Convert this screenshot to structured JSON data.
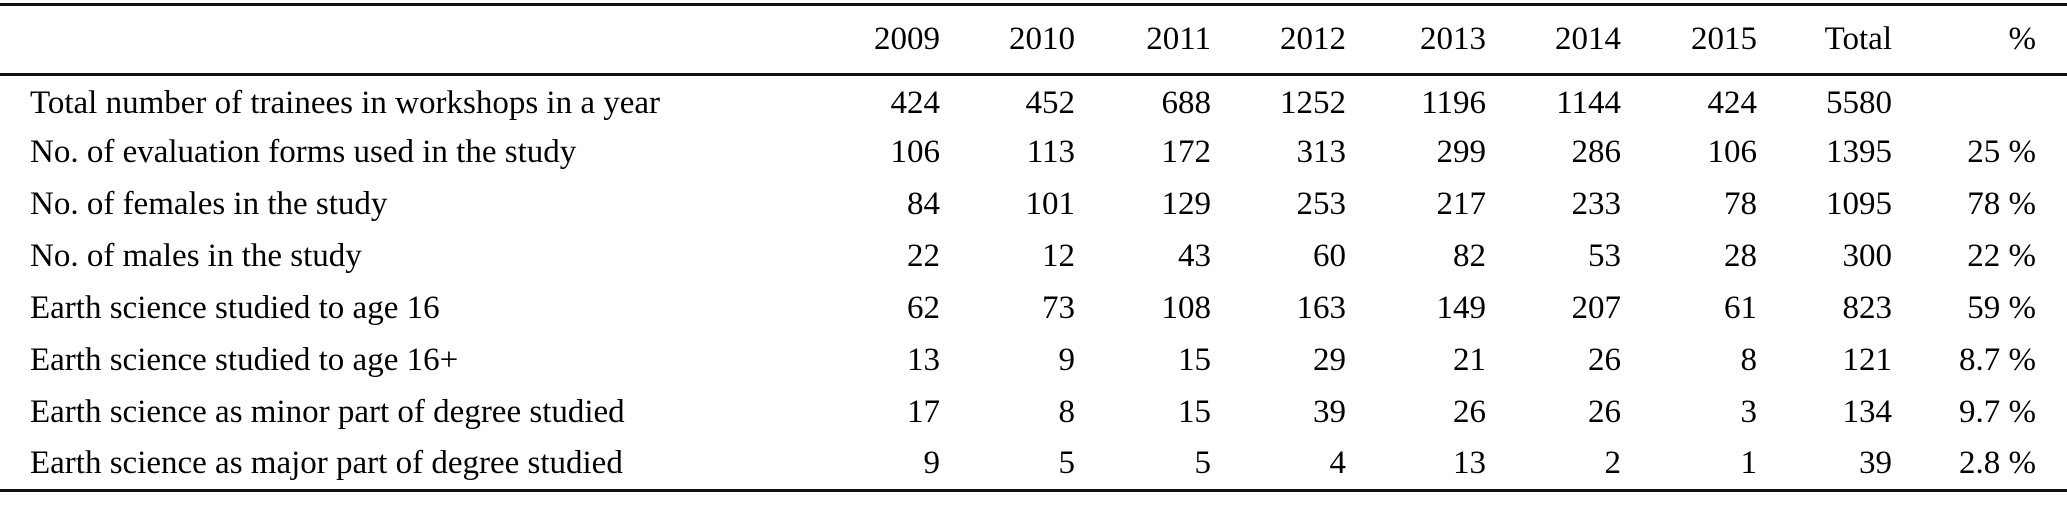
{
  "table": {
    "columns": [
      "",
      "2009",
      "2010",
      "2011",
      "2012",
      "2013",
      "2014",
      "2015",
      "Total",
      "%"
    ],
    "rows": [
      {
        "label": "Total number of trainees in workshops in a year",
        "values": [
          "424",
          "452",
          "688",
          "1252",
          "1196",
          "1144",
          "424",
          "5580",
          ""
        ]
      },
      {
        "label": "No. of evaluation forms used in the study",
        "values": [
          "106",
          "113",
          "172",
          "313",
          "299",
          "286",
          "106",
          "1395",
          "25 %"
        ]
      },
      {
        "label": "No. of females in the study",
        "values": [
          "84",
          "101",
          "129",
          "253",
          "217",
          "233",
          "78",
          "1095",
          "78 %"
        ]
      },
      {
        "label": "No. of males in the study",
        "values": [
          "22",
          "12",
          "43",
          "60",
          "82",
          "53",
          "28",
          "300",
          "22 %"
        ]
      },
      {
        "label": "Earth science studied to age 16",
        "values": [
          "62",
          "73",
          "108",
          "163",
          "149",
          "207",
          "61",
          "823",
          "59 %"
        ]
      },
      {
        "label": "Earth science studied to age 16+",
        "values": [
          "13",
          "9",
          "15",
          "29",
          "21",
          "26",
          "8",
          "121",
          "8.7 %"
        ]
      },
      {
        "label": "Earth science as minor part of degree studied",
        "values": [
          "17",
          "8",
          "15",
          "39",
          "26",
          "26",
          "3",
          "134",
          "9.7 %"
        ]
      },
      {
        "label": "Earth science as major part of degree studied",
        "values": [
          "9",
          "5",
          "5",
          "4",
          "13",
          "2",
          "1",
          "39",
          "2.8 %"
        ]
      }
    ]
  },
  "colors": {
    "text": "#000000",
    "rule": "#111111",
    "background": "#ffffff"
  }
}
